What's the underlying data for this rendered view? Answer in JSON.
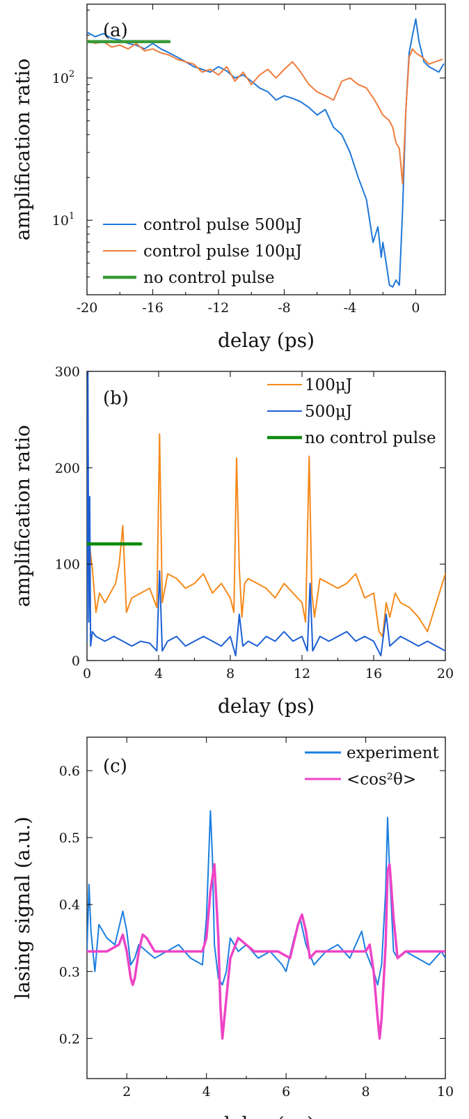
{
  "chart_data": [
    {
      "type": "line",
      "panel_label": "(a)",
      "xlabel": "delay (ps)",
      "ylabel": "amplification ratio",
      "yscale": "log",
      "xlim": [
        -20,
        1.8
      ],
      "ylim": [
        3,
        330
      ],
      "x_ticks": [
        -20,
        -16,
        -12,
        -8,
        -4,
        0
      ],
      "x_tick_labels": [
        "-20",
        "-16",
        "-12",
        "-8",
        "-4",
        "0"
      ],
      "y_ticks": [
        10,
        100
      ],
      "y_tick_labels": [
        {
          "base": "10",
          "exp": "1"
        },
        {
          "base": "10",
          "exp": "2"
        }
      ],
      "legend_position": "bottom-left",
      "series": [
        {
          "name": "control pulse 500μJ",
          "color": "#1f77d8",
          "x": [
            -20,
            -19.5,
            -19,
            -18.5,
            -18,
            -17.5,
            -17,
            -16.5,
            -16,
            -15.5,
            -15,
            -14.5,
            -14,
            -13.5,
            -13,
            -12.5,
            -12,
            -11.5,
            -11,
            -10.5,
            -10,
            -9.5,
            -9,
            -8.5,
            -8,
            -7.5,
            -7,
            -6.5,
            -6,
            -5.5,
            -5,
            -4.5,
            -4,
            -3.5,
            -3,
            -2.6,
            -2.3,
            -2.1,
            -2.0,
            -1.8,
            -1.6,
            -1.4,
            -1.2,
            -1.0,
            -0.8,
            -0.6,
            -0.4,
            -0.2,
            0,
            0.2,
            0.5,
            0.8,
            1.1,
            1.4,
            1.7
          ],
          "y": [
            210,
            195,
            205,
            190,
            185,
            175,
            170,
            160,
            175,
            160,
            150,
            140,
            130,
            120,
            115,
            110,
            120,
            112,
            100,
            105,
            95,
            85,
            80,
            70,
            75,
            72,
            68,
            62,
            55,
            60,
            45,
            40,
            30,
            20,
            14,
            7,
            9,
            5.5,
            7,
            5,
            3.5,
            3.4,
            3.8,
            3.5,
            12,
            60,
            150,
            200,
            260,
            180,
            130,
            120,
            115,
            110,
            125
          ]
        },
        {
          "name": "control pulse 100μJ",
          "color": "#f07c3c",
          "x": [
            -20,
            -19.5,
            -19,
            -18.5,
            -18,
            -17.5,
            -17,
            -16.5,
            -16,
            -15.5,
            -15,
            -14.5,
            -14,
            -13.5,
            -13,
            -12.5,
            -12,
            -11.5,
            -11,
            -10.5,
            -10,
            -9.5,
            -9,
            -8.5,
            -8,
            -7.5,
            -7,
            -6.5,
            -6,
            -5.5,
            -5,
            -4.5,
            -4,
            -3.5,
            -3,
            -2.5,
            -2,
            -1.6,
            -1.4,
            -1.2,
            -1.0,
            -0.8,
            -0.6,
            -0.4,
            -0.2,
            0,
            0.4,
            0.8,
            1.2,
            1.6
          ],
          "y": [
            185,
            175,
            180,
            165,
            170,
            160,
            175,
            155,
            160,
            150,
            145,
            135,
            130,
            125,
            110,
            115,
            105,
            120,
            95,
            110,
            90,
            105,
            115,
            100,
            115,
            130,
            110,
            90,
            80,
            75,
            70,
            95,
            100,
            90,
            85,
            70,
            55,
            50,
            45,
            35,
            32,
            18,
            60,
            140,
            160,
            150,
            140,
            125,
            130,
            135
          ]
        },
        {
          "name": "no control pulse",
          "color": "#3a9a3a",
          "x": [
            -20,
            -15
          ],
          "y": [
            180,
            180
          ]
        }
      ]
    },
    {
      "type": "line",
      "panel_label": "(b)",
      "xlabel": "delay (ps)",
      "ylabel": "amplification ratio",
      "xlim": [
        0,
        20
      ],
      "ylim": [
        0,
        300
      ],
      "x_ticks": [
        0,
        4,
        8,
        12,
        16,
        20
      ],
      "x_tick_labels": [
        "0",
        "4",
        "8",
        "12",
        "16",
        "20"
      ],
      "y_ticks": [
        0,
        100,
        200,
        300
      ],
      "y_tick_labels": [
        "0",
        "100",
        "200",
        "300"
      ],
      "legend_position": "top-right",
      "series": [
        {
          "name": "100μJ",
          "color": "#f5891a",
          "x": [
            0,
            0.1,
            0.2,
            0.3,
            0.5,
            0.7,
            1.0,
            1.3,
            1.6,
            1.8,
            2.0,
            2.2,
            2.5,
            3.0,
            3.5,
            3.9,
            4.05,
            4.2,
            4.5,
            5.0,
            5.5,
            6.0,
            6.5,
            7.0,
            7.5,
            8.0,
            8.2,
            8.35,
            8.5,
            8.65,
            8.8,
            9.0,
            9.5,
            10,
            10.5,
            11,
            11.5,
            12,
            12.2,
            12.4,
            12.55,
            12.7,
            13,
            13.5,
            14,
            14.5,
            15,
            15.5,
            16,
            16.3,
            16.5,
            16.7,
            16.9,
            17.2,
            17.5,
            18,
            18.5,
            19,
            19.5,
            20
          ],
          "y": [
            160,
            130,
            110,
            95,
            50,
            70,
            60,
            70,
            80,
            100,
            140,
            50,
            65,
            70,
            75,
            55,
            235,
            60,
            90,
            85,
            75,
            80,
            90,
            70,
            80,
            65,
            50,
            210,
            95,
            45,
            80,
            85,
            80,
            75,
            65,
            80,
            70,
            60,
            40,
            212,
            70,
            45,
            85,
            80,
            75,
            80,
            90,
            65,
            70,
            30,
            25,
            60,
            45,
            70,
            60,
            55,
            45,
            30,
            60,
            90
          ]
        },
        {
          "name": "500μJ",
          "color": "#1c5fd4",
          "x": [
            0,
            0.05,
            0.1,
            0.15,
            0.2,
            0.3,
            0.5,
            1.0,
            1.5,
            2.0,
            2.5,
            3.0,
            3.5,
            3.9,
            4.05,
            4.2,
            4.5,
            5.0,
            5.5,
            6.0,
            6.5,
            7.0,
            7.5,
            8.0,
            8.3,
            8.5,
            8.7,
            9.0,
            9.5,
            10,
            10.5,
            11,
            11.5,
            12,
            12.3,
            12.45,
            12.6,
            13,
            13.5,
            14,
            14.5,
            15,
            15.5,
            16,
            16.4,
            16.7,
            16.9,
            17.2,
            17.5,
            18,
            18.5,
            19,
            19.5,
            20
          ],
          "y": [
            20,
            300,
            40,
            170,
            15,
            30,
            25,
            20,
            25,
            20,
            15,
            20,
            18,
            10,
            93,
            10,
            20,
            25,
            15,
            20,
            25,
            20,
            15,
            25,
            5,
            48,
            15,
            20,
            15,
            25,
            20,
            30,
            20,
            25,
            10,
            80,
            10,
            25,
            20,
            25,
            30,
            20,
            25,
            20,
            5,
            48,
            15,
            20,
            25,
            20,
            15,
            20,
            15,
            10
          ]
        },
        {
          "name": "no control pulse",
          "color": "#0a8a0a",
          "x": [
            0,
            3
          ],
          "y": [
            121,
            121
          ]
        }
      ]
    },
    {
      "type": "line",
      "panel_label": "(c)",
      "xlabel": "delay (ps)",
      "ylabel": "lasing signal (a.u.)",
      "xlim": [
        1,
        10
      ],
      "ylim": [
        0.14,
        0.65
      ],
      "x_ticks": [
        2,
        4,
        6,
        8,
        10
      ],
      "x_tick_labels": [
        "2",
        "4",
        "6",
        "8",
        "10"
      ],
      "y_ticks": [
        0.2,
        0.3,
        0.4,
        0.5,
        0.6
      ],
      "y_tick_labels": [
        "0.2",
        "0.3",
        "0.4",
        "0.5",
        "0.6"
      ],
      "legend_position": "top-right",
      "series": [
        {
          "name": "experiment",
          "color": "#1a7ee0",
          "x": [
            1.0,
            1.05,
            1.1,
            1.2,
            1.3,
            1.5,
            1.7,
            1.9,
            2.0,
            2.1,
            2.2,
            2.3,
            2.5,
            2.7,
            3.0,
            3.3,
            3.6,
            3.9,
            4.0,
            4.1,
            4.15,
            4.2,
            4.3,
            4.4,
            4.5,
            4.6,
            4.8,
            5.0,
            5.3,
            5.6,
            5.9,
            6.0,
            6.2,
            6.35,
            6.5,
            6.7,
            7.0,
            7.3,
            7.6,
            7.9,
            8.0,
            8.2,
            8.3,
            8.4,
            8.5,
            8.55,
            8.6,
            8.7,
            8.8,
            9.0,
            9.3,
            9.6,
            9.9,
            10.0
          ],
          "y": [
            0.33,
            0.43,
            0.36,
            0.3,
            0.37,
            0.35,
            0.34,
            0.39,
            0.36,
            0.31,
            0.32,
            0.34,
            0.33,
            0.32,
            0.33,
            0.34,
            0.32,
            0.31,
            0.38,
            0.54,
            0.47,
            0.34,
            0.29,
            0.28,
            0.3,
            0.35,
            0.33,
            0.34,
            0.32,
            0.33,
            0.31,
            0.3,
            0.35,
            0.38,
            0.34,
            0.31,
            0.33,
            0.34,
            0.32,
            0.36,
            0.33,
            0.3,
            0.28,
            0.31,
            0.42,
            0.53,
            0.45,
            0.33,
            0.32,
            0.33,
            0.32,
            0.31,
            0.33,
            0.32
          ]
        },
        {
          "name": "<cos²θ>",
          "color": "#ee44c6",
          "x": [
            1.0,
            1.5,
            1.8,
            1.9,
            2.0,
            2.1,
            2.15,
            2.2,
            2.3,
            2.4,
            2.5,
            2.7,
            3.0,
            3.5,
            3.9,
            4.0,
            4.1,
            4.2,
            4.3,
            4.35,
            4.4,
            4.5,
            4.6,
            4.8,
            5.2,
            5.8,
            6.1,
            6.3,
            6.4,
            6.5,
            6.6,
            6.75,
            7.0,
            7.6,
            8.0,
            8.1,
            8.2,
            8.3,
            8.35,
            8.4,
            8.5,
            8.55,
            8.6,
            8.7,
            8.8,
            9.0,
            9.5,
            10.0
          ],
          "y": [
            0.33,
            0.33,
            0.34,
            0.355,
            0.33,
            0.29,
            0.28,
            0.29,
            0.33,
            0.355,
            0.35,
            0.33,
            0.33,
            0.33,
            0.33,
            0.35,
            0.42,
            0.46,
            0.35,
            0.25,
            0.2,
            0.26,
            0.32,
            0.35,
            0.33,
            0.33,
            0.32,
            0.37,
            0.385,
            0.36,
            0.32,
            0.33,
            0.33,
            0.33,
            0.33,
            0.34,
            0.3,
            0.23,
            0.2,
            0.23,
            0.34,
            0.45,
            0.46,
            0.38,
            0.32,
            0.33,
            0.33,
            0.33
          ]
        }
      ]
    }
  ]
}
